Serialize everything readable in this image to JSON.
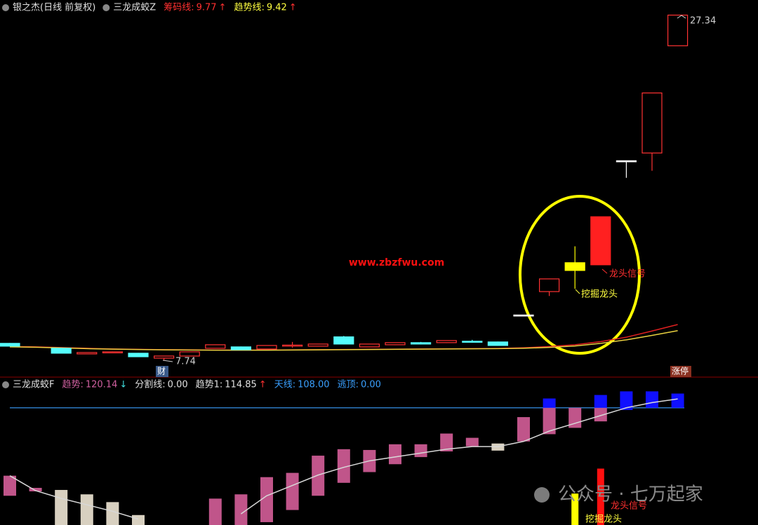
{
  "chart_data": [
    {
      "type": "candlestick",
      "header": [
        {
          "name": "银之杰(日线 前复权)",
          "color": "#e0e0e0"
        },
        {
          "name": "三龙成蛟Z",
          "color": "#e0e0e0"
        },
        {
          "name": "筹码线:",
          "value": 9.77,
          "arrow": "↑",
          "color": "#ff3030",
          "arrow_color": "#ff3030"
        },
        {
          "name": "趋势线:",
          "value": 9.42,
          "arrow": "↑",
          "color": "#ffff40",
          "arrow_color": "#ff3030"
        }
      ],
      "ylim": [
        7.5,
        27.8
      ],
      "candles": {
        "open": [
          8.7,
          null,
          8.42,
          8.1,
          8.2,
          8.14,
          7.86,
          7.98,
          8.42,
          8.5,
          8.38,
          8.58,
          8.54,
          9.07,
          8.5,
          8.62,
          8.74,
          8.74,
          8.82,
          8.78,
          10.31,
          11.64,
          12.84,
          13.16,
          19.07,
          19.51,
          25.6
        ],
        "high": [
          8.72,
          null,
          8.45,
          8.18,
          8.24,
          8.16,
          7.98,
          8.22,
          8.62,
          8.52,
          8.58,
          8.78,
          8.66,
          9.12,
          8.66,
          8.74,
          8.78,
          8.86,
          8.9,
          8.8,
          10.31,
          12.36,
          14.21,
          15.89,
          19.07,
          22.92,
          27.34
        ],
        "low": [
          8.52,
          null,
          8.12,
          8.08,
          8.18,
          7.92,
          7.74,
          7.96,
          8.4,
          8.32,
          8.36,
          8.46,
          8.52,
          8.64,
          8.48,
          8.6,
          8.64,
          8.72,
          8.74,
          8.56,
          10.31,
          11.39,
          11.8,
          13.16,
          18.1,
          18.5,
          25.6
        ],
        "close": [
          8.54,
          null,
          8.14,
          8.18,
          8.22,
          7.94,
          7.98,
          8.22,
          8.62,
          8.34,
          8.58,
          8.6,
          8.66,
          8.66,
          8.66,
          8.74,
          8.66,
          8.86,
          8.76,
          8.58,
          10.31,
          12.36,
          13.28,
          15.89,
          19.07,
          22.92,
          27.34
        ],
        "colors": [
          "#54fcfc",
          null,
          "#54fcfc",
          "#ff3232",
          "#ff3232",
          "#54fcfc",
          "#ff3232",
          "#ff3232",
          "#ff3232",
          "#54fcfc",
          "#ff3232",
          "#ff3232",
          "#ff3232",
          "#54fcfc",
          "#ff3232",
          "#ff3232",
          "#54fcfc",
          "#ff3232",
          "#54fcfc",
          "#54fcfc",
          "#ffffff",
          "#ff3232",
          "#ffff00",
          "#ff2020",
          "#ffffff",
          "#ff3232",
          "#ff3232"
        ],
        "hollow": [
          false,
          null,
          false,
          true,
          true,
          false,
          true,
          true,
          true,
          false,
          true,
          true,
          true,
          false,
          true,
          true,
          false,
          true,
          false,
          false,
          false,
          true,
          false,
          false,
          false,
          true,
          true
        ]
      },
      "lines": [
        {
          "color": "#e02020",
          "values": [
            8.52,
            8.5,
            8.46,
            8.42,
            8.38,
            8.36,
            8.34,
            8.33,
            8.32,
            8.32,
            8.32,
            8.33,
            8.34,
            8.35,
            8.36,
            8.37,
            8.38,
            8.39,
            8.4,
            8.41,
            8.45,
            8.52,
            8.62,
            8.8,
            9.05,
            9.4,
            9.77
          ]
        },
        {
          "color": "#e8d040",
          "values": [
            8.5,
            8.48,
            8.44,
            8.4,
            8.37,
            8.35,
            8.33,
            8.32,
            8.31,
            8.31,
            8.31,
            8.32,
            8.33,
            8.34,
            8.35,
            8.36,
            8.37,
            8.38,
            8.39,
            8.4,
            8.42,
            8.47,
            8.55,
            8.7,
            8.9,
            9.15,
            9.42
          ]
        }
      ],
      "annotations": [
        {
          "text": "7.74",
          "color": "#d0d0d0"
        },
        {
          "text": "27.34",
          "color": "#d0d0d0"
        },
        {
          "text": "龙头信号",
          "color": "#ff3030"
        },
        {
          "text": "挖掘龙头",
          "color": "#ffff40"
        },
        {
          "text": "www.zbzfwu.com",
          "color": "#ff1010"
        }
      ],
      "tags": [
        {
          "text": "财",
          "color": "#3a5a8a"
        },
        {
          "text": "涨停",
          "color": "#8a3020"
        }
      ]
    },
    {
      "type": "range-bar",
      "header": [
        {
          "name": "三龙成蛟F",
          "color": "#e0e0e0"
        },
        {
          "name": "趋势:",
          "value": 120.14,
          "arrow": "↓",
          "color": "#d060a0",
          "arrow_color": "#40e0e0"
        },
        {
          "name": "分割线:",
          "value": 0,
          "value_label": "0.00",
          "color": "#e0e0e0"
        },
        {
          "name": "趋势1:",
          "value": 114.85,
          "arrow": "↑",
          "color": "#e0e0e0",
          "arrow_color": "#ff3030"
        },
        {
          "name": "天线:",
          "value": 108,
          "value_label": "108.00",
          "color": "#3aa0ff"
        },
        {
          "name": "逃顶:",
          "value": 0,
          "value_label": "0.00",
          "color": "#3aa0ff"
        }
      ],
      "ylim": [
        17.4,
        130.1
      ],
      "bars": {
        "low": [
          40.0,
          43.4,
          17.4,
          17.4,
          17.4,
          17.4,
          null,
          null,
          17.4,
          17.4,
          19.6,
          29.0,
          40.0,
          50.0,
          58.3,
          64.4,
          69.9,
          74.3,
          78.2,
          74.9,
          82.0,
          87.6,
          92.5,
          97.5,
          null,
          null,
          null
        ],
        "high": [
          55.5,
          46.1,
          44.5,
          41.1,
          35.1,
          25.1,
          null,
          null,
          37.8,
          41.1,
          54.4,
          57.7,
          71.0,
          76.0,
          75.4,
          79.8,
          79.8,
          88.1,
          84.8,
          80.4,
          100.8,
          108.0,
          108.0,
          108.0,
          null,
          null,
          null
        ],
        "colors": [
          "#c0558a",
          "#c0558a",
          "#d8d0c0",
          "#d8d0c0",
          "#d8d0c0",
          "#d8d0c0",
          null,
          null,
          "#c0558a",
          "#c0558a",
          "#c0558a",
          "#c0558a",
          "#c0558a",
          "#c0558a",
          "#c0558a",
          "#c0558a",
          "#c0558a",
          "#c0558a",
          "#c0558a",
          "#d8d0c0",
          "#c0558a",
          "#c0558a",
          "#c0558a",
          "#c0558a",
          null,
          null,
          null
        ]
      },
      "top_bars": {
        "color": "#1010ff",
        "low": [
          null,
          null,
          null,
          null,
          null,
          null,
          null,
          null,
          null,
          null,
          null,
          null,
          null,
          null,
          null,
          null,
          null,
          null,
          null,
          null,
          null,
          108.0,
          null,
          108.0,
          106.3,
          108.0,
          108.0
        ],
        "high": [
          null,
          null,
          null,
          null,
          null,
          null,
          null,
          null,
          null,
          null,
          null,
          null,
          null,
          null,
          null,
          null,
          null,
          null,
          null,
          null,
          null,
          115.2,
          null,
          117.9,
          120.7,
          120.7,
          119.0
        ]
      },
      "signal_bars": [
        {
          "color": "#ffff00",
          "index": 22,
          "low": 17.4,
          "high": 41.7
        },
        {
          "color": "#ff1010",
          "index": 23,
          "low": 17.4,
          "high": 61.0
        }
      ],
      "trend_line": {
        "color": "#d8d8d8",
        "values": [
          55.5,
          44.0,
          38.0,
          33.0,
          28.0,
          22.0,
          null,
          null,
          null,
          26.0,
          40.0,
          48.0,
          56.0,
          62.0,
          67.0,
          70.0,
          73.0,
          76.0,
          78.0,
          78.0,
          82.0,
          90.0,
          96.0,
          102.0,
          108.0,
          112.0,
          114.85
        ]
      },
      "annotations": [
        {
          "text": "龙头信号",
          "color": "#ff3030"
        },
        {
          "text": "挖掘龙头",
          "color": "#ffff40"
        }
      ],
      "watermark": "公众号 · 七万起家"
    }
  ]
}
